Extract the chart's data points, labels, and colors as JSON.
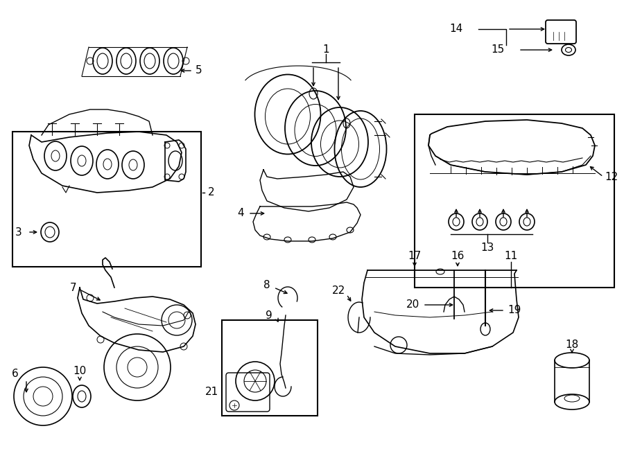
{
  "bg_color": "#ffffff",
  "line_color": "#000000",
  "fig_width": 9.0,
  "fig_height": 6.61,
  "dpi": 100,
  "title_text": "",
  "label_fontsize": 11,
  "xlim": [
    0,
    900
  ],
  "ylim": [
    0,
    661
  ]
}
